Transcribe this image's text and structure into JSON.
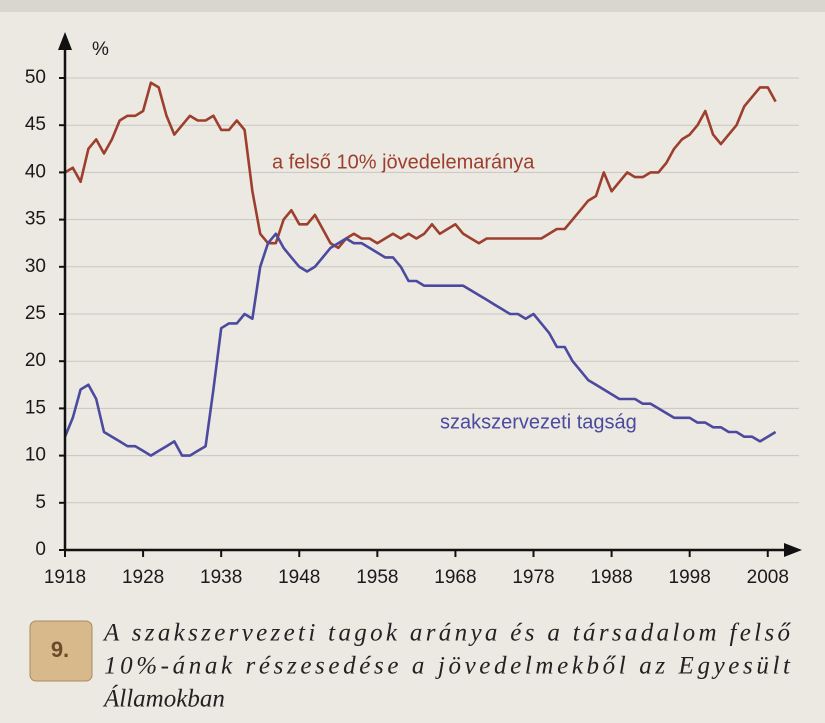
{
  "chart_data": {
    "type": "line",
    "y_unit_label": "%",
    "x": [
      1918,
      1919,
      1920,
      1921,
      1922,
      1923,
      1924,
      1925,
      1926,
      1927,
      1928,
      1929,
      1930,
      1931,
      1932,
      1933,
      1934,
      1935,
      1936,
      1937,
      1938,
      1939,
      1940,
      1941,
      1942,
      1943,
      1944,
      1945,
      1946,
      1947,
      1948,
      1949,
      1950,
      1951,
      1952,
      1953,
      1954,
      1955,
      1956,
      1957,
      1958,
      1959,
      1960,
      1961,
      1962,
      1963,
      1964,
      1965,
      1966,
      1967,
      1968,
      1969,
      1970,
      1971,
      1972,
      1973,
      1974,
      1975,
      1976,
      1977,
      1978,
      1979,
      1980,
      1981,
      1982,
      1983,
      1984,
      1985,
      1986,
      1987,
      1988,
      1989,
      1990,
      1991,
      1992,
      1993,
      1994,
      1995,
      1996,
      1997,
      1998,
      1999,
      2000,
      2001,
      2002,
      2003,
      2004,
      2005,
      2006,
      2007,
      2008,
      2009
    ],
    "series": [
      {
        "name": "a felső 10% jövedelemaránya",
        "color": "#9c3f2c",
        "values": [
          40,
          40.5,
          39,
          42.5,
          43.5,
          42,
          43.5,
          45.5,
          46,
          46,
          46.5,
          49.5,
          49,
          46,
          44,
          45,
          46,
          45.5,
          45.5,
          46,
          44.5,
          44.5,
          45.5,
          44.5,
          38,
          33.5,
          32.5,
          32.5,
          35,
          36,
          34.5,
          34.5,
          35.5,
          34,
          32.5,
          32,
          33,
          33.5,
          33,
          33,
          32.5,
          33,
          33.5,
          33,
          33.5,
          33,
          33.5,
          34.5,
          33.5,
          34,
          34.5,
          33.5,
          33,
          32.5,
          33,
          33,
          33,
          33,
          33,
          33,
          33,
          33,
          33.5,
          34,
          34,
          35,
          36,
          37,
          37.5,
          40,
          38,
          39,
          40,
          39.5,
          39.5,
          40,
          40,
          41,
          42.5,
          43.5,
          44,
          45,
          46.5,
          44,
          43,
          44,
          45,
          47,
          48,
          49,
          49,
          47.5
        ]
      },
      {
        "name": "szakszervezeti tagság",
        "color": "#4b4a9e",
        "values": [
          12,
          14,
          17,
          17.5,
          16,
          12.5,
          12,
          11.5,
          11,
          11,
          10.5,
          10,
          10.5,
          11,
          11.5,
          10,
          10,
          10.5,
          11,
          17,
          23.5,
          24,
          24,
          25,
          24.5,
          30,
          32.5,
          33.5,
          32,
          31,
          30,
          29.5,
          30,
          31,
          32,
          32.5,
          33,
          32.5,
          32.5,
          32,
          31.5,
          31,
          31,
          30,
          28.5,
          28.5,
          28,
          28,
          28,
          28,
          28,
          28,
          27.5,
          27,
          26.5,
          26,
          25.5,
          25,
          25,
          24.5,
          25,
          24,
          23,
          21.5,
          21.5,
          20,
          19,
          18,
          17.5,
          17,
          16.5,
          16,
          16,
          16,
          15.5,
          15.5,
          15,
          14.5,
          14,
          14,
          14,
          13.5,
          13.5,
          13,
          13,
          12.5,
          12.5,
          12,
          12,
          11.5,
          12,
          12.5
        ]
      }
    ],
    "xlim": [
      1918,
      2012
    ],
    "xticks": [
      1918,
      1928,
      1938,
      1948,
      1958,
      1968,
      1978,
      1988,
      1998,
      2008
    ],
    "ylim": [
      0,
      50
    ],
    "yticks": [
      0,
      5,
      10,
      15,
      20,
      25,
      30,
      35,
      40,
      45,
      50
    ],
    "grid": true,
    "figure_number": "9.",
    "caption": [
      "A szakszervezeti tagok aránya és a társadalom felső",
      "10%-ának részesedése a jövedelmekből az Egyesült",
      "Államokban"
    ]
  }
}
